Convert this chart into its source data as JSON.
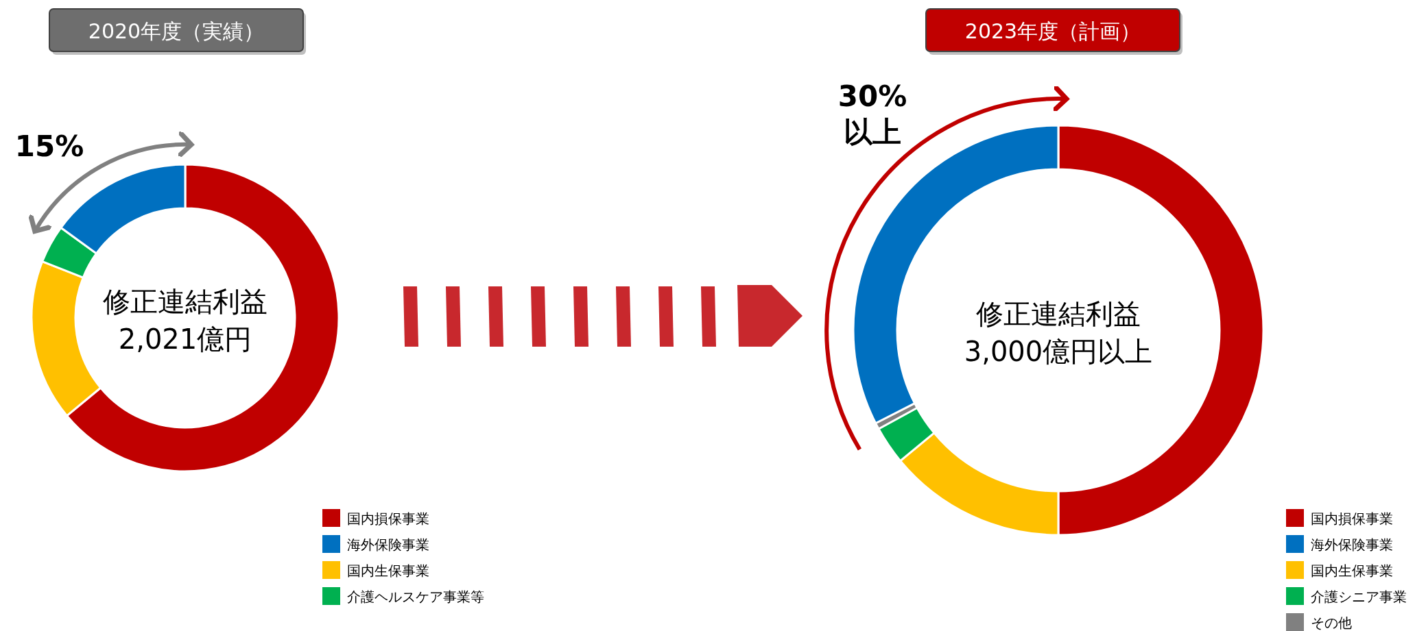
{
  "chart_data": [
    {
      "type": "donut",
      "title": "2020年度（実績）",
      "categories": [
        "国内損保事業",
        "海外保険事業",
        "国内生保事業",
        "介護ヘルスケア事業等"
      ],
      "values": [
        64,
        15,
        17,
        4
      ],
      "colors": [
        "#c00000",
        "#0070c0",
        "#ffc000",
        "#00b050"
      ],
      "legend": "bottom right",
      "annotations": [
        "修正連結利益",
        "2,021億円",
        "15%"
      ]
    },
    {
      "type": "donut",
      "title": "2023年度（計画）",
      "categories": [
        "国内損保事業",
        "海外保険事業",
        "国内生保事業",
        "介護シニア事業",
        "その他"
      ],
      "values": [
        50,
        32.5,
        14,
        3,
        0.5
      ],
      "colors": [
        "#c00000",
        "#0070c0",
        "#ffc000",
        "#00b050",
        "#808080"
      ],
      "legend": "bottom right",
      "annotations": [
        "修正連結利益",
        "3,000億円以上",
        "30%",
        "以上"
      ]
    }
  ]
}
